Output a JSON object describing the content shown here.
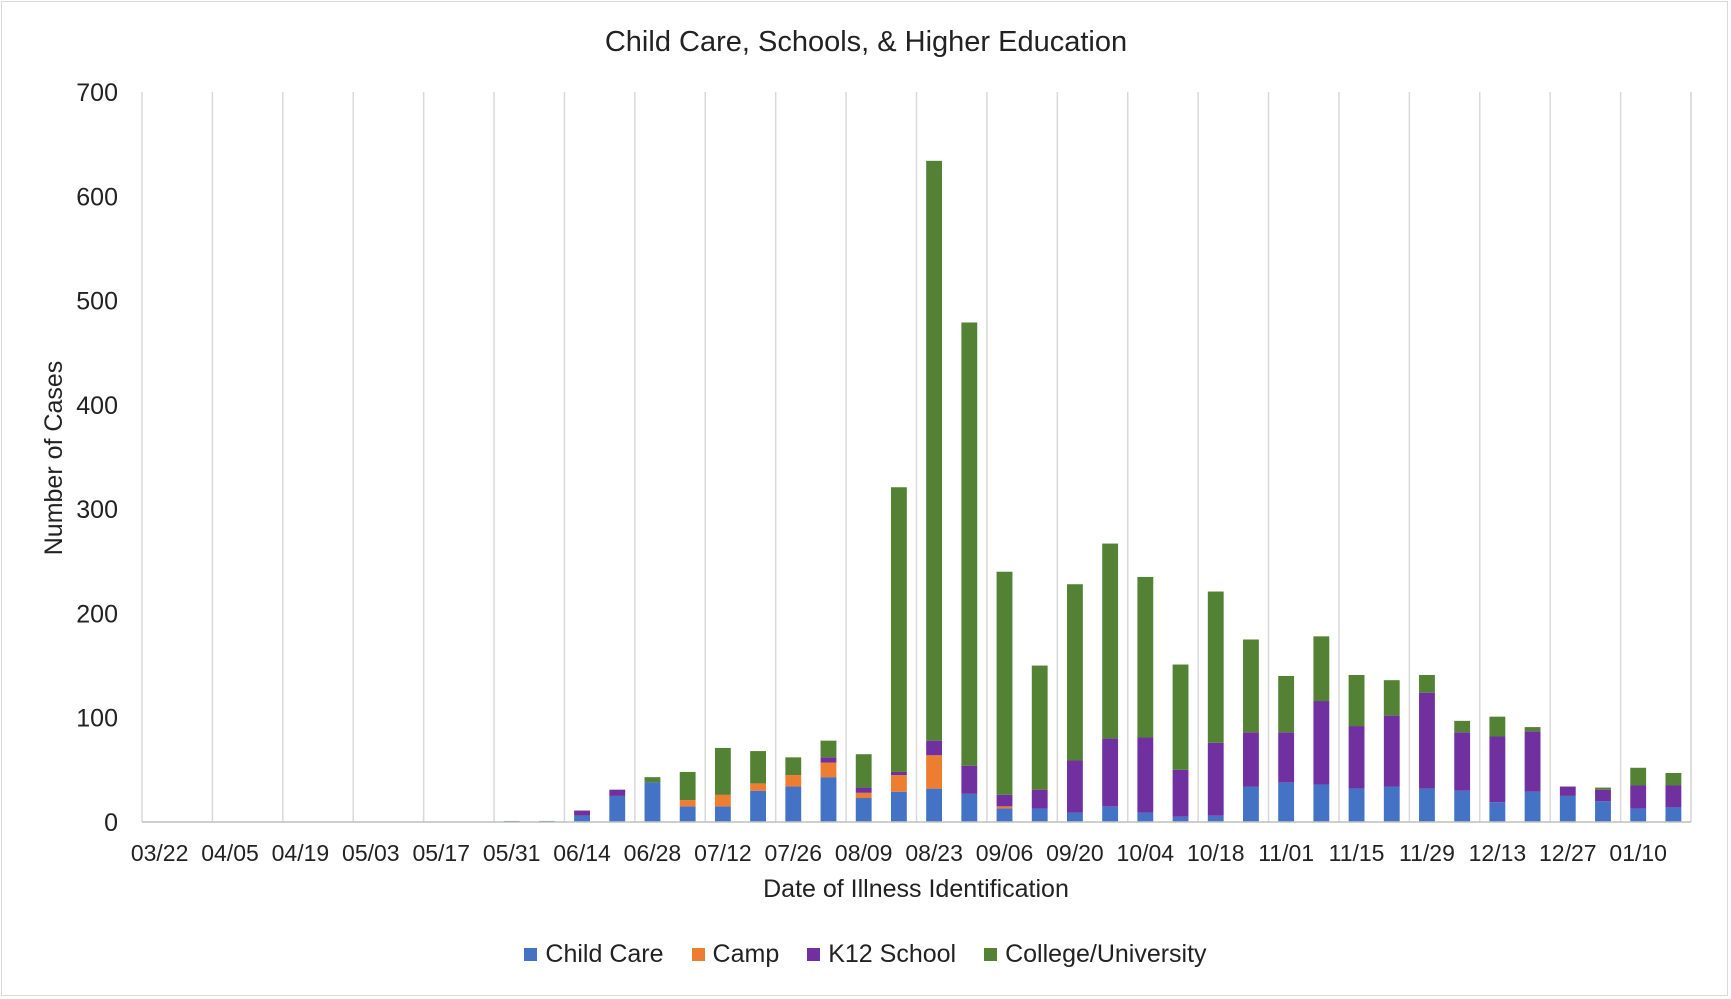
{
  "chart_data": {
    "type": "bar",
    "stacked": true,
    "title": "Child Care, Schools, & Higher Education",
    "xlabel": "Date of Illness Identification",
    "ylabel": "Number  of Cases",
    "ylim": [
      0,
      700
    ],
    "yticks": [
      0,
      100,
      200,
      300,
      400,
      500,
      600,
      700
    ],
    "grid": "vertical",
    "legend_position": "bottom",
    "x_tick_labels": [
      "03/22",
      "04/05",
      "04/19",
      "05/03",
      "05/17",
      "05/31",
      "06/14",
      "06/28",
      "07/12",
      "07/26",
      "08/09",
      "08/23",
      "09/06",
      "09/20",
      "10/04",
      "10/18",
      "11/01",
      "11/15",
      "11/29",
      "12/13",
      "12/27",
      "01/10"
    ],
    "series": [
      {
        "name": "Child Care",
        "color": "#4472C4",
        "values": [
          0,
          0,
          0,
          0,
          0,
          0,
          0,
          0,
          0,
          0,
          1,
          1,
          6,
          25,
          38,
          15,
          15,
          30,
          34,
          43,
          23,
          29,
          32,
          27,
          13,
          13,
          9,
          15,
          9,
          5,
          6,
          34,
          38,
          36,
          32,
          34,
          32,
          30,
          19,
          29,
          25,
          20,
          13,
          14
        ]
      },
      {
        "name": "Camp",
        "color": "#ED7D31",
        "values": [
          0,
          0,
          0,
          0,
          0,
          0,
          0,
          0,
          0,
          0,
          0,
          0,
          0,
          0,
          0,
          6,
          11,
          7,
          11,
          14,
          5,
          16,
          32,
          0,
          2,
          0,
          0,
          0,
          0,
          0,
          0,
          0,
          0,
          0,
          0,
          0,
          0,
          0,
          0,
          0,
          0,
          0,
          0,
          0
        ]
      },
      {
        "name": "K12 School",
        "color": "#7030A0",
        "values": [
          0,
          0,
          0,
          0,
          0,
          0,
          0,
          0,
          0,
          0,
          0,
          0,
          5,
          6,
          0,
          0,
          0,
          0,
          0,
          5,
          5,
          3,
          14,
          27,
          11,
          18,
          50,
          65,
          72,
          45,
          70,
          52,
          48,
          80,
          60,
          68,
          92,
          56,
          63,
          58,
          9,
          11,
          22,
          21
        ]
      },
      {
        "name": "College/University",
        "color": "#548235",
        "values": [
          0,
          0,
          0,
          0,
          0,
          0,
          0,
          0,
          0,
          0,
          0,
          0,
          0,
          0,
          5,
          27,
          45,
          31,
          17,
          16,
          32,
          273,
          556,
          425,
          214,
          119,
          169,
          187,
          154,
          101,
          145,
          89,
          54,
          62,
          49,
          34,
          17,
          11,
          19,
          4,
          0,
          2,
          17,
          12
        ]
      }
    ]
  }
}
